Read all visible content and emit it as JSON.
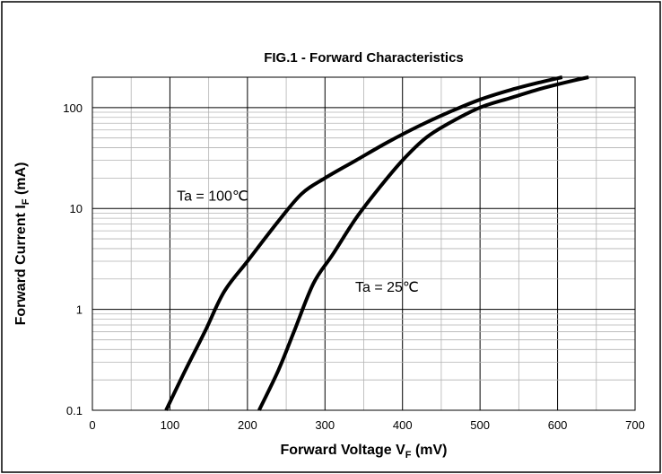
{
  "chart_data": {
    "type": "line",
    "title": "FIG.1 - Forward Characteristics",
    "xlabel": {
      "main": "Forward Voltage V",
      "sub": "F",
      "tail": " (mV)"
    },
    "ylabel": {
      "main": "Forward Current I",
      "sub": "F",
      "tail": " (mA)"
    },
    "xlim": [
      0,
      700
    ],
    "ylim": [
      0.1,
      200
    ],
    "yscale": "log",
    "grid": true,
    "xticks": [
      0,
      100,
      200,
      300,
      400,
      500,
      600,
      700
    ],
    "xtick_labels": [
      "0",
      "100",
      "200",
      "300",
      "400",
      "500",
      "600",
      "700"
    ],
    "yticks": [
      0.1,
      1,
      10,
      100
    ],
    "ytick_labels": [
      "0.1",
      "1",
      "10",
      "100"
    ],
    "series": [
      {
        "name": "Ta = 100℃",
        "x": [
          95,
          120,
          145,
          170,
          200,
          240,
          270,
          300,
          340,
          380,
          420,
          460,
          500,
          540,
          580,
          606
        ],
        "y": [
          0.1,
          0.25,
          0.6,
          1.5,
          3,
          7.5,
          14,
          20,
          30,
          45,
          65,
          90,
          120,
          150,
          180,
          200
        ]
      },
      {
        "name": "Ta = 25℃",
        "x": [
          215,
          240,
          260,
          285,
          310,
          340,
          370,
          400,
          430,
          460,
          500,
          540,
          580,
          620,
          640
        ],
        "y": [
          0.1,
          0.25,
          0.6,
          1.8,
          3.5,
          8,
          16,
          30,
          50,
          70,
          100,
          125,
          155,
          185,
          200
        ]
      }
    ],
    "annotations": [
      {
        "text": "Ta = 100℃",
        "x": 155,
        "y": 12
      },
      {
        "text": "Ta = 25℃",
        "x": 380,
        "y": 1.5
      }
    ]
  }
}
